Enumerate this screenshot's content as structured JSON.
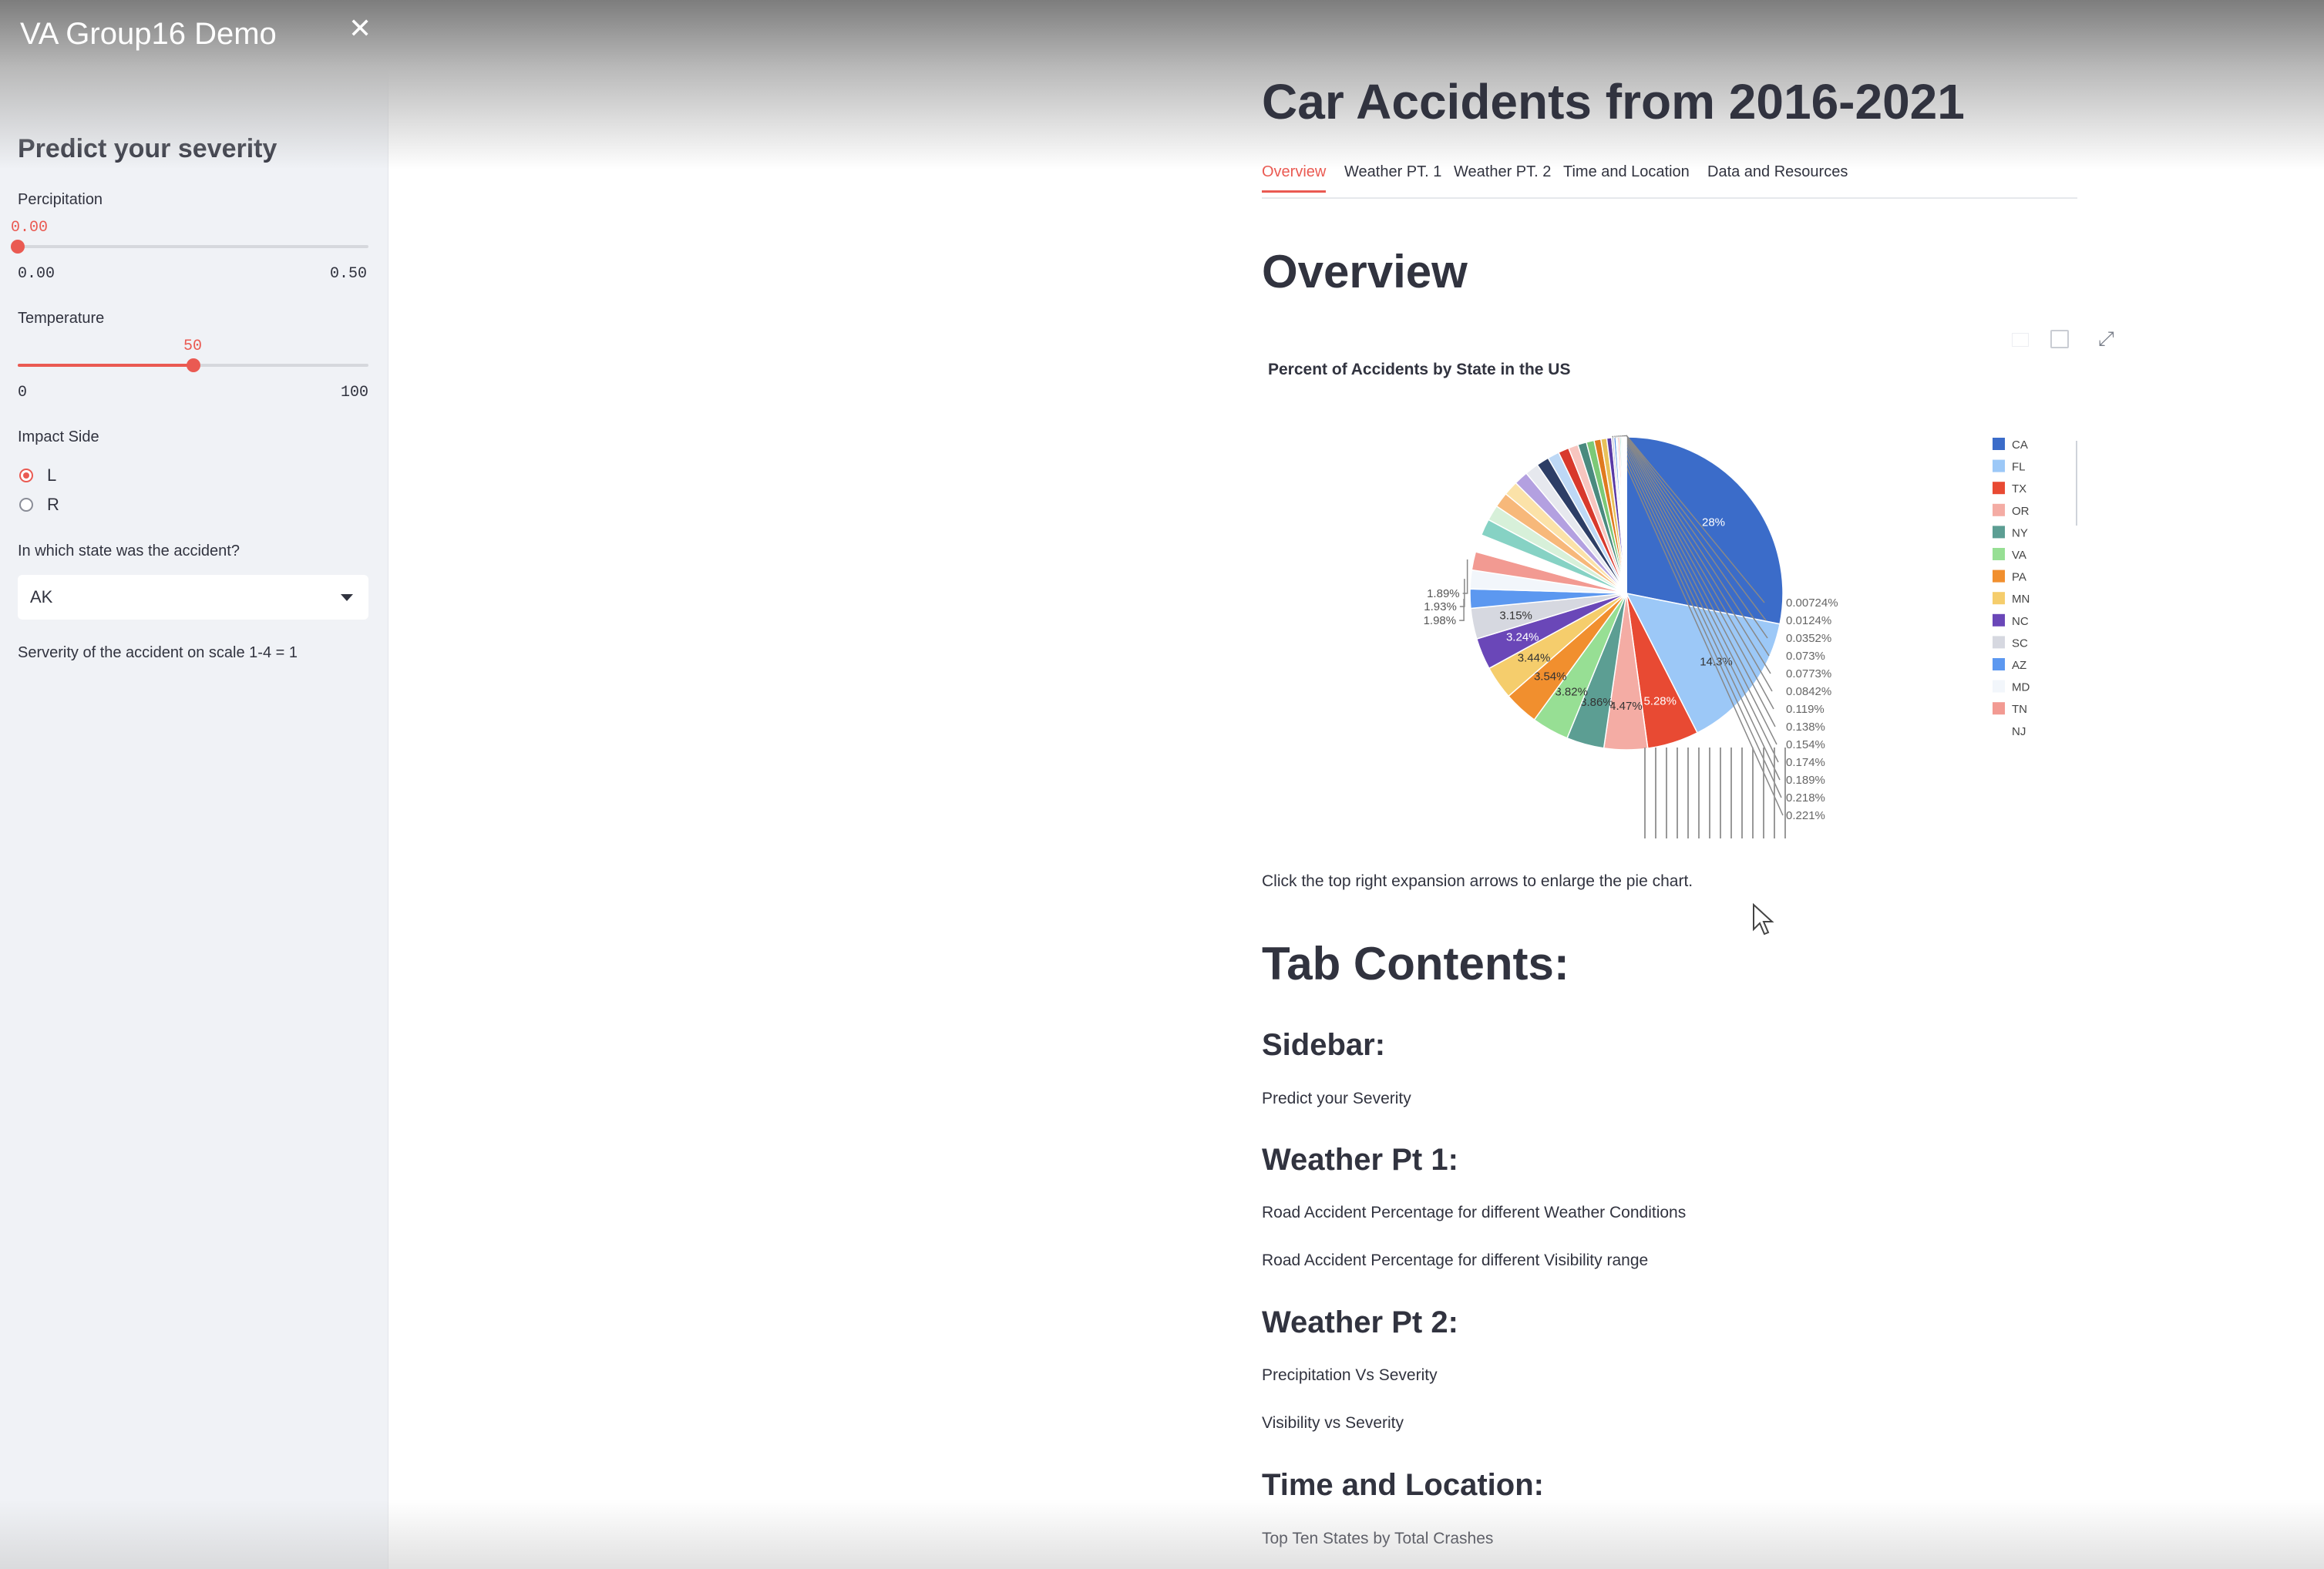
{
  "sidebar": {
    "app_title": "VA Group16 Demo",
    "heading": "Predict your severity",
    "precipitation": {
      "label": "Percipitation",
      "value": "0.00",
      "min": "0.00",
      "max": "0.50",
      "fraction": 0.0
    },
    "temperature": {
      "label": "Temperature",
      "value": "50",
      "min": "0",
      "max": "100",
      "fraction": 0.5
    },
    "impact_side": {
      "label": "Impact Side",
      "options": [
        "L",
        "R"
      ],
      "selected": "L"
    },
    "state": {
      "label": "In which state was the accident?",
      "selected": "AK"
    },
    "result": "Serverity of the accident on scale 1-4 = 1"
  },
  "main": {
    "title": "Car Accidents from 2016-2021",
    "tabs": [
      "Overview",
      "Weather PT. 1",
      "Weather PT. 2",
      "Time and Location",
      "Data and Resources"
    ],
    "active_tab": "Overview",
    "overview_heading": "Overview",
    "chart_hint": "Click the top right expansion arrows to enlarge the pie chart.",
    "tab_contents_heading": "Tab Contents:",
    "sections": [
      {
        "heading": "Sidebar:",
        "items": [
          "Predict your Severity"
        ]
      },
      {
        "heading": "Weather Pt 1:",
        "items": [
          "Road Accident Percentage for different Weather Conditions",
          "Road Accident Percentage for different Visibility range"
        ]
      },
      {
        "heading": "Weather Pt 2:",
        "items": [
          "Precipitation Vs Severity",
          "Visibility vs Severity"
        ]
      },
      {
        "heading": "Time and Location:",
        "items": [
          "Top Ten States by Total Crashes"
        ]
      }
    ]
  },
  "chart_data": {
    "type": "pie",
    "title": "Percent of Accidents by State in the US",
    "legend": [
      "CA",
      "FL",
      "TX",
      "OR",
      "NY",
      "VA",
      "PA",
      "MN",
      "NC",
      "SC",
      "AZ",
      "MD",
      "TN",
      "NJ"
    ],
    "slices": [
      {
        "label": "CA",
        "value": 28,
        "color": "#3b6cc9",
        "text": "28%"
      },
      {
        "label": "FL",
        "value": 14.3,
        "color": "#9cc8f7",
        "text": "14.3%"
      },
      {
        "label": "TX",
        "value": 5.28,
        "color": "#e84a33",
        "text": "5.28%"
      },
      {
        "label": "OR",
        "value": 4.47,
        "color": "#f4aca4",
        "text": "4.47%"
      },
      {
        "label": "NY",
        "value": 3.86,
        "color": "#5c9e93",
        "text": "3.86%"
      },
      {
        "label": "VA",
        "value": 3.82,
        "color": "#97df94",
        "text": "3.82%"
      },
      {
        "label": "PA",
        "value": 3.54,
        "color": "#f18f2e",
        "text": "3.54%"
      },
      {
        "label": "MN",
        "value": 3.44,
        "color": "#f5cd6c",
        "text": "3.44%"
      },
      {
        "label": "NC",
        "value": 3.24,
        "color": "#6a47b8",
        "text": "3.24%"
      },
      {
        "label": "SC",
        "value": 3.15,
        "color": "#d6d8e0",
        "text": "3.15%"
      },
      {
        "label": "AZ",
        "value": 1.98,
        "color": "#5c98f0",
        "text": "1.98%"
      },
      {
        "label": "MD",
        "value": 1.93,
        "color": "#f2f6fb",
        "text": "1.93%"
      },
      {
        "label": "TN",
        "value": 1.89,
        "color": "#f29a92",
        "text": "1.89%"
      },
      {
        "label": "NJ",
        "value": 1.8,
        "color": "#ffffff",
        "text": ""
      },
      {
        "label": "",
        "value": 1.7,
        "color": "#86d2c4",
        "text": ""
      },
      {
        "label": "",
        "value": 1.6,
        "color": "#d7f0d9",
        "text": ""
      },
      {
        "label": "",
        "value": 1.55,
        "color": "#f7b87a",
        "text": ""
      },
      {
        "label": "",
        "value": 1.5,
        "color": "#fbe2a8",
        "text": ""
      },
      {
        "label": "",
        "value": 1.45,
        "color": "#b3a0e0",
        "text": ""
      },
      {
        "label": "",
        "value": 1.4,
        "color": "#e6e8ee",
        "text": ""
      },
      {
        "label": "",
        "value": 1.3,
        "color": "#2d3e66",
        "text": ""
      },
      {
        "label": "",
        "value": 1.2,
        "color": "#bdd8f5",
        "text": ""
      },
      {
        "label": "",
        "value": 1.1,
        "color": "#d8392c",
        "text": ""
      },
      {
        "label": "",
        "value": 1.0,
        "color": "#f7c5bf",
        "text": ""
      },
      {
        "label": "",
        "value": 0.9,
        "color": "#4a8a7f",
        "text": ""
      },
      {
        "label": "",
        "value": 0.8,
        "color": "#7cc977",
        "text": ""
      },
      {
        "label": "",
        "value": 0.7,
        "color": "#e07a1f",
        "text": ""
      },
      {
        "label": "",
        "value": 0.6,
        "color": "#e8c15a",
        "text": ""
      },
      {
        "label": "",
        "value": 0.5,
        "color": "#5a3aa6",
        "text": ""
      },
      {
        "label": "",
        "value": 0.221,
        "color": "#c4c6cf",
        "text": "0.221%"
      },
      {
        "label": "",
        "value": 0.218,
        "color": "#4f88e2",
        "text": "0.218%"
      },
      {
        "label": "",
        "value": 0.189,
        "color": "#eef2f8",
        "text": "0.189%"
      },
      {
        "label": "",
        "value": 0.174,
        "color": "#ea8a82",
        "text": "0.174%"
      },
      {
        "label": "",
        "value": 0.154,
        "color": "#74c4b6",
        "text": "0.154%"
      },
      {
        "label": "",
        "value": 0.138,
        "color": "#c6eec9",
        "text": "0.138%"
      },
      {
        "label": "",
        "value": 0.119,
        "color": "#f3a862",
        "text": "0.119%"
      },
      {
        "label": "",
        "value": 0.0842,
        "color": "#f8d890",
        "text": "0.0842%"
      },
      {
        "label": "",
        "value": 0.0773,
        "color": "#9f8bd6",
        "text": "0.0773%"
      },
      {
        "label": "",
        "value": 0.073,
        "color": "#d9dbe3",
        "text": "0.073%"
      },
      {
        "label": "",
        "value": 0.0352,
        "color": "#1f2e52",
        "text": "0.0352%"
      },
      {
        "label": "",
        "value": 0.0124,
        "color": "#a8c8ec",
        "text": "0.0124%"
      },
      {
        "label": "",
        "value": 0.00724,
        "color": "#c73024",
        "text": "0.00724%"
      }
    ]
  }
}
